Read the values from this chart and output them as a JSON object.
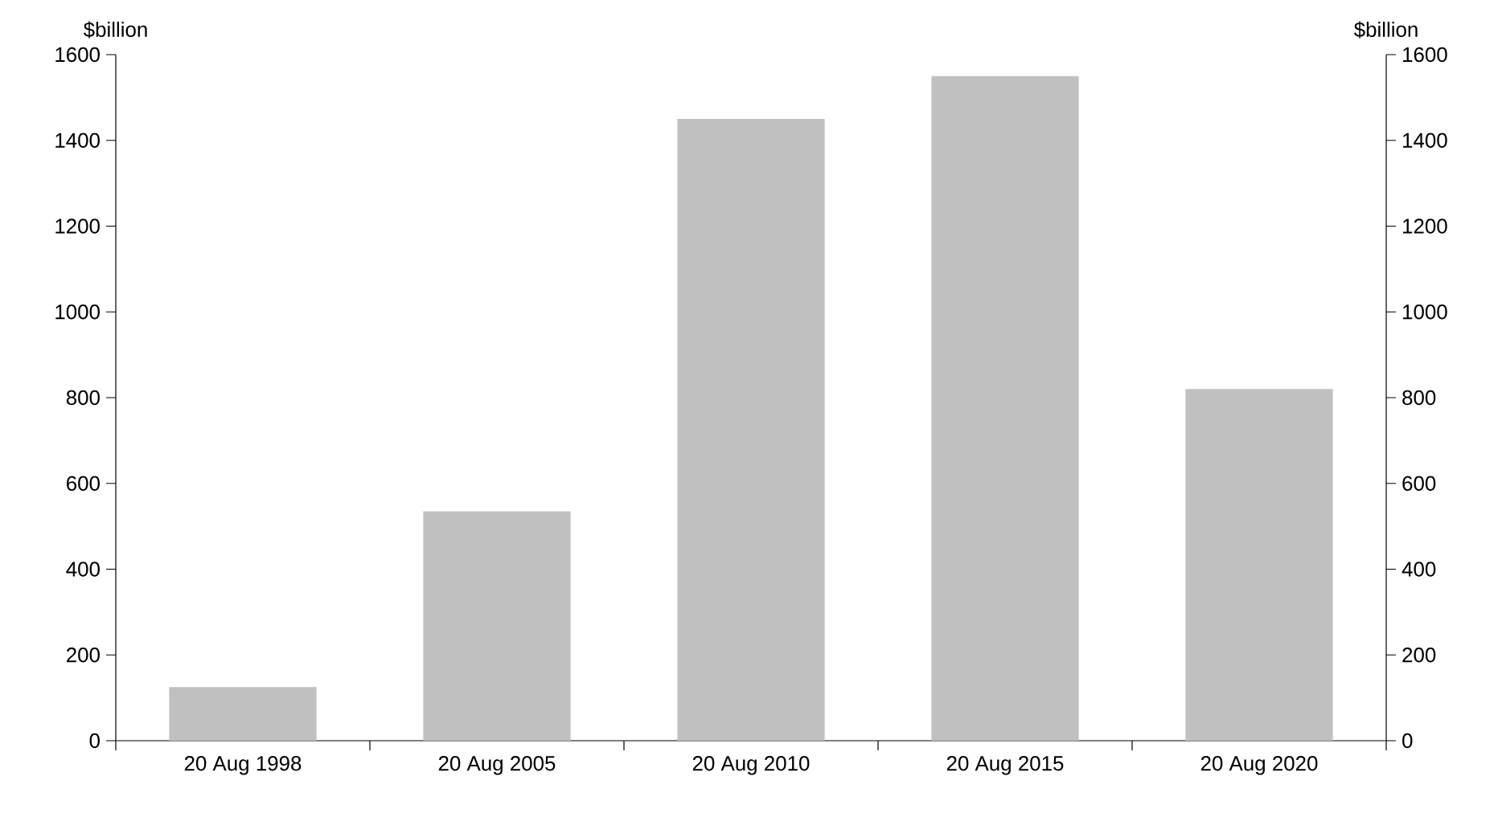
{
  "chart_data": {
    "type": "bar",
    "ylabel": "$billion",
    "y2label": "$billion",
    "categories": [
      "20 Aug 1998",
      "20 Aug 2005",
      "20 Aug 2010",
      "20 Aug 2015",
      "20 Aug 2020"
    ],
    "values": [
      125,
      535,
      1450,
      1550,
      820
    ],
    "color": "#c0c0c0",
    "ylim": [
      0,
      1600
    ],
    "yticks": [
      0,
      200,
      400,
      600,
      800,
      1000,
      1200,
      1400,
      1600
    ],
    "y2lim": [
      0,
      1600
    ],
    "y2ticks": [
      0,
      200,
      400,
      600,
      800,
      1000,
      1200,
      1400,
      1600
    ],
    "grid": false
  }
}
